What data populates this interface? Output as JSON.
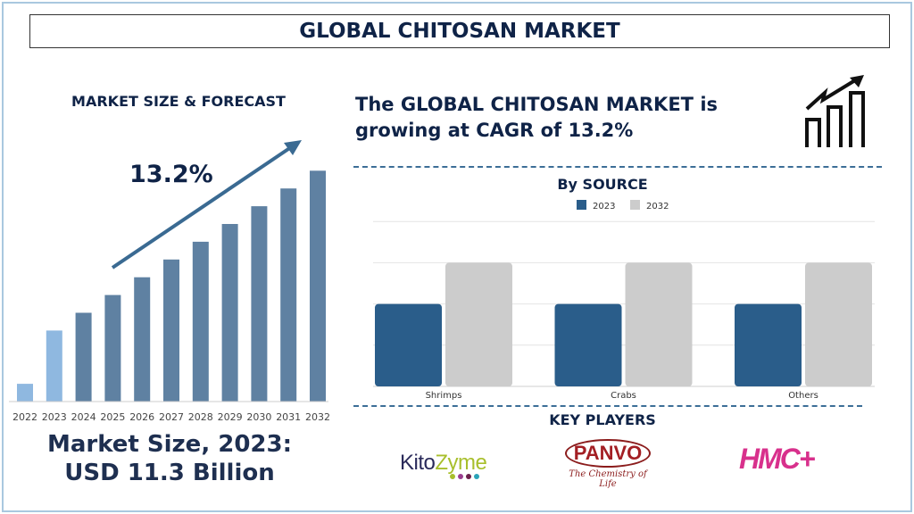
{
  "title": "GLOBAL CHITOSAN MARKET",
  "left_panel": {
    "heading": "MARKET SIZE & FORECAST",
    "cagr": "13.2%",
    "market_size_line1": "Market Size, 2023:",
    "market_size_line2": "USD 11.3 Billion"
  },
  "headline": "The GLOBAL CHITOSAN MARKET is growing at CAGR of 13.2%",
  "icons": {
    "growth": "growth-chart-icon",
    "trend": "trend-arrow"
  },
  "key_players": {
    "heading": "KEY PLAYERS",
    "logos": [
      "KitoZyme",
      "PANVO",
      "HMC+"
    ],
    "panvo_tagline": "The Chemistry of Life"
  },
  "chart_data": [
    {
      "type": "bar",
      "categories": [
        "2022",
        "2023",
        "2024",
        "2025",
        "2026",
        "2027",
        "2028",
        "2029",
        "2030",
        "2031",
        "2032"
      ],
      "values": [
        1,
        4,
        5,
        6,
        7,
        8,
        9,
        10,
        11,
        12,
        13
      ],
      "colors": {
        "historical": "#8fb8e0",
        "forecast": "#5f81a2"
      },
      "highlight": [
        "2022",
        "2023"
      ],
      "grid": false
    },
    {
      "type": "bar",
      "title": "By SOURCE",
      "categories": [
        "Shrimps",
        "Crabs",
        "Others"
      ],
      "series": [
        {
          "name": "2023",
          "values": [
            2,
            2,
            2
          ],
          "color": "#2a5d8a"
        },
        {
          "name": "2032",
          "values": [
            3,
            3,
            3
          ],
          "color": "#cccccc"
        }
      ],
      "ylim": [
        0,
        4
      ],
      "grid": true,
      "legend": "top"
    }
  ]
}
